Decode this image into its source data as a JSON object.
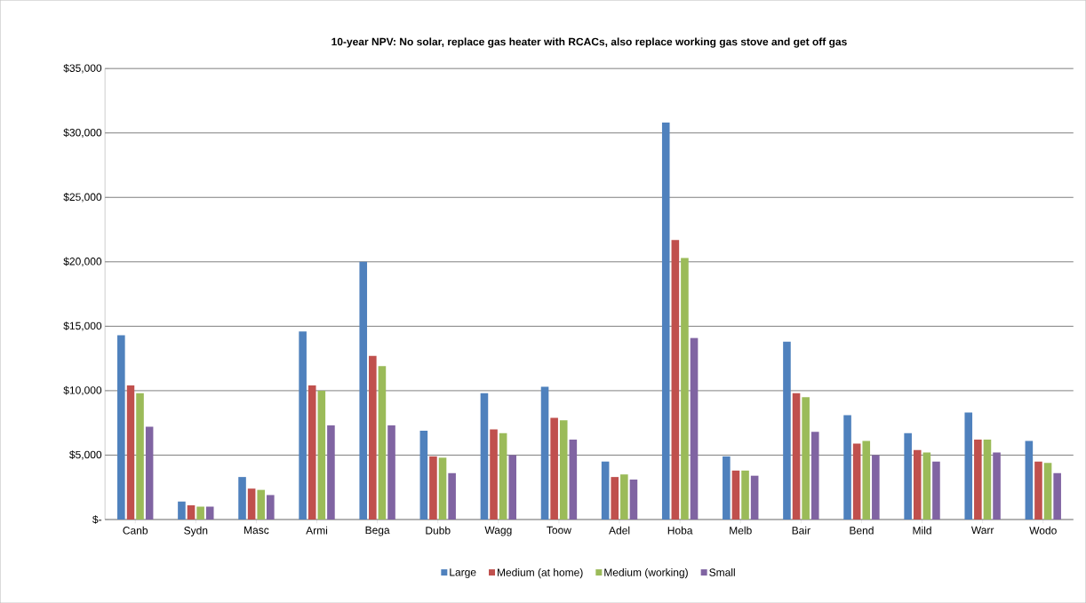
{
  "chart_data": {
    "type": "bar",
    "title": "10-year NPV: No solar, replace gas heater with RCACs, also replace working gas stove and get off gas",
    "categories": [
      "Canb",
      "Sydn",
      "Masc",
      "Armi",
      "Bega",
      "Dubb",
      "Wagg",
      "Toow",
      "Adel",
      "Hoba",
      "Melb",
      "Bair",
      "Bend",
      "Mild",
      "Warr",
      "Wodo"
    ],
    "series": [
      {
        "name": "Large",
        "color": "#4f81bd",
        "values": [
          14300,
          1400,
          3300,
          14600,
          20000,
          6900,
          9800,
          10300,
          4500,
          30800,
          4900,
          13800,
          8100,
          6700,
          8300,
          6100
        ]
      },
      {
        "name": "Medium (at home)",
        "color": "#c0504d",
        "values": [
          10400,
          1100,
          2400,
          10400,
          12700,
          4900,
          7000,
          7900,
          3300,
          21700,
          3800,
          9800,
          5900,
          5400,
          6200,
          4500
        ]
      },
      {
        "name": "Medium (working)",
        "color": "#9bbb59",
        "values": [
          9800,
          1000,
          2300,
          10000,
          11900,
          4800,
          6700,
          7700,
          3500,
          20300,
          3800,
          9500,
          6100,
          5200,
          6200,
          4400
        ]
      },
      {
        "name": "Small",
        "color": "#8064a2",
        "values": [
          7200,
          1000,
          1900,
          7300,
          7300,
          3600,
          5000,
          6200,
          3100,
          14100,
          3400,
          6800,
          5000,
          4500,
          5200,
          3600
        ]
      }
    ],
    "ylim": [
      0,
      35000
    ],
    "yticks": [
      {
        "value": 0,
        "label": "$-"
      },
      {
        "value": 5000,
        "label": "$5,000"
      },
      {
        "value": 10000,
        "label": "$10,000"
      },
      {
        "value": 15000,
        "label": "$15,000"
      },
      {
        "value": 20000,
        "label": "$20,000"
      },
      {
        "value": 25000,
        "label": "$25,000"
      },
      {
        "value": 30000,
        "label": "$30,000"
      },
      {
        "value": 35000,
        "label": "$35,000"
      }
    ],
    "grid": "y",
    "legend": "bottom"
  }
}
